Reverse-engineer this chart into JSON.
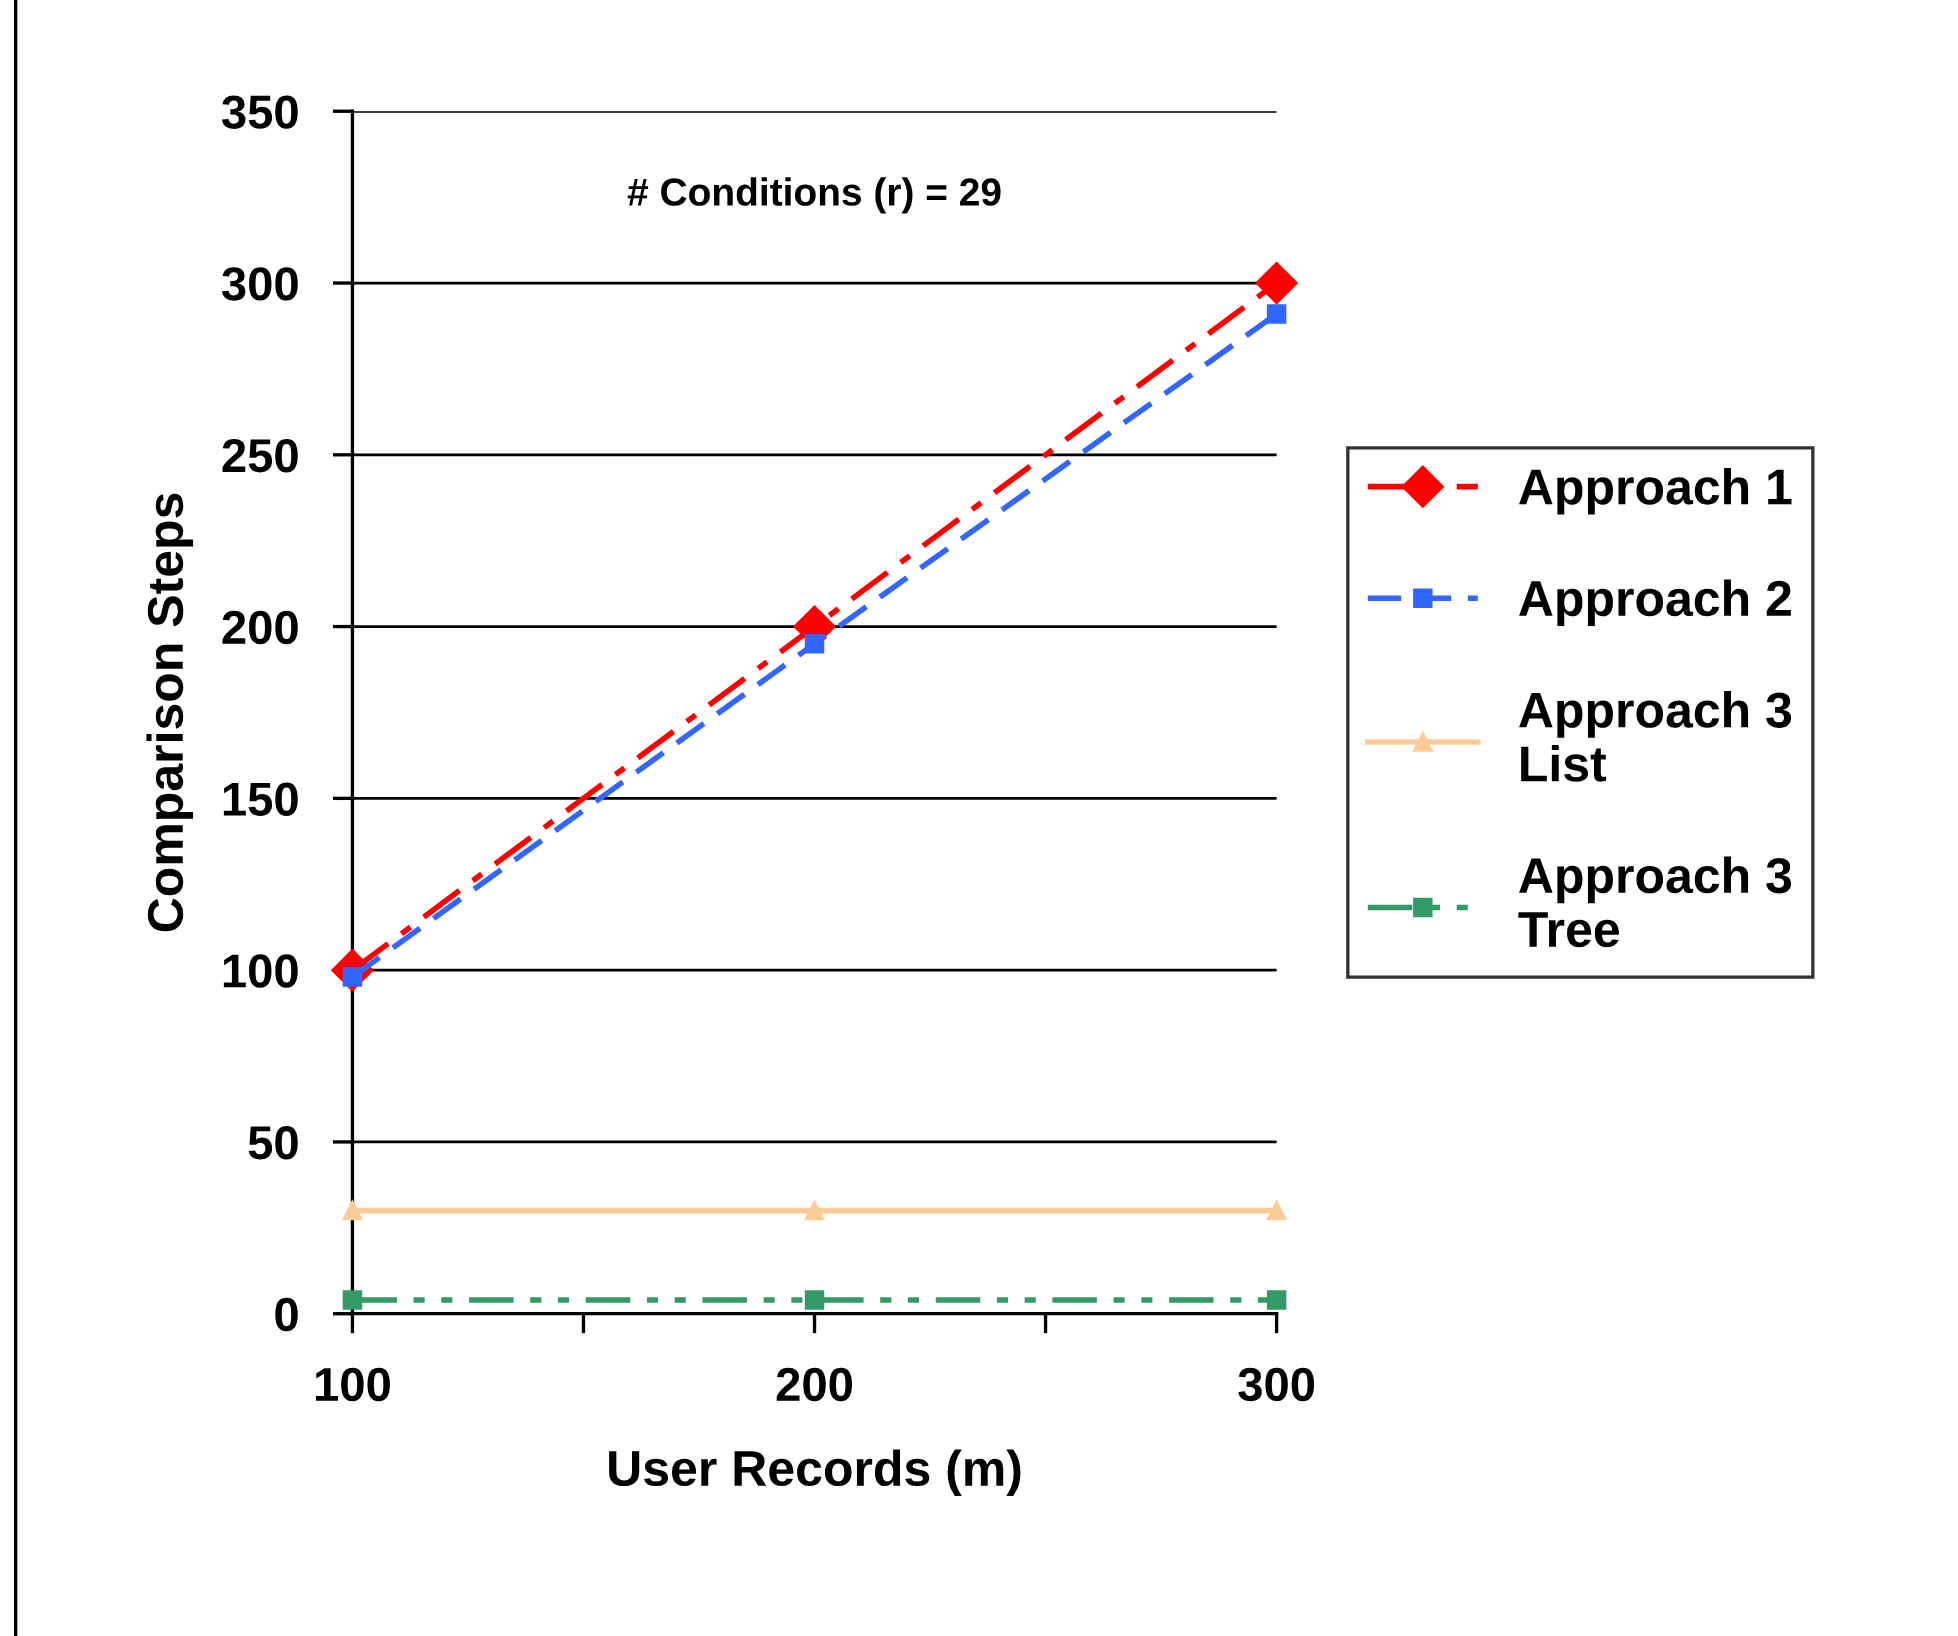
{
  "chart_data": {
    "type": "line",
    "annotations": [
      "# Conditions (r) = 29"
    ],
    "xlabel": "User Records (m)",
    "ylabel": "Comparison Steps",
    "x": [
      100,
      200,
      300
    ],
    "series": [
      {
        "name": "Approach 1",
        "color": "#ff0000",
        "values": [
          100,
          200,
          300
        ],
        "marker": "diamond",
        "line_style": "dashdot"
      },
      {
        "name": "Approach 2",
        "color": "#3366ff",
        "values": [
          98,
          195,
          291
        ],
        "marker": "square",
        "line_style": "dashed"
      },
      {
        "name": "Approach 3\nList",
        "color": "#ffcc99",
        "values": [
          30,
          30,
          30
        ],
        "marker": "triangle",
        "line_style": "solid"
      },
      {
        "name": "Approach 3\nTree",
        "color": "#339966",
        "values": [
          4,
          4,
          4
        ],
        "marker": "square",
        "line_style": "dashdotdot"
      }
    ],
    "xlim": [
      100,
      300
    ],
    "xticks": [
      100,
      {
        "value": 150,
        "label": null
      },
      200,
      {
        "value": 250,
        "label": null
      },
      300
    ],
    "ylim": [
      0,
      350
    ],
    "yticks": [
      0,
      50,
      100,
      150,
      200,
      250,
      300,
      350
    ],
    "grid": "y",
    "legend": "right"
  }
}
